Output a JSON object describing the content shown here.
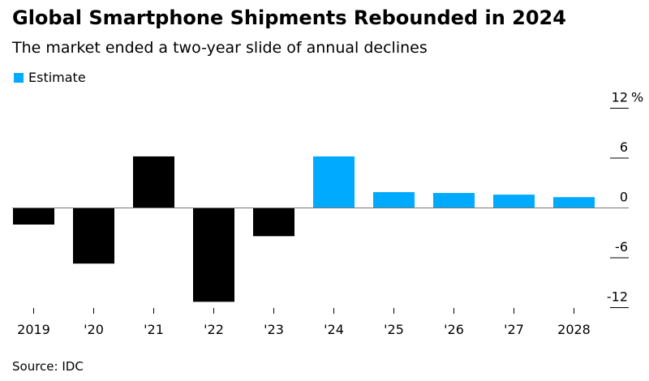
{
  "chart_data": {
    "type": "bar",
    "title": "Global Smartphone Shipments Rebounded in 2024",
    "subtitle": "The market ended a two-year slide of annual declines",
    "categories": [
      "2019",
      "'20",
      "'21",
      "'22",
      "'23",
      "'24",
      "'25",
      "'26",
      "'27",
      "2028"
    ],
    "values": [
      -2.0,
      -6.7,
      6.2,
      -11.3,
      -3.4,
      6.2,
      1.9,
      1.8,
      1.6,
      1.3
    ],
    "estimate": [
      false,
      false,
      false,
      false,
      false,
      true,
      true,
      true,
      true,
      true
    ],
    "legend": [
      {
        "label": "Estimate",
        "color": "#00aaff"
      }
    ],
    "legend_placement": "top-left",
    "colors": {
      "actual": "#000000",
      "estimate": "#00aaff"
    },
    "ylim": [
      -12,
      12
    ],
    "yticks": [
      12,
      6,
      0,
      -6,
      -12
    ],
    "ytick_labels": [
      "12",
      "6",
      "0",
      "-6",
      "-12"
    ],
    "yunit": "%",
    "xlabel": "",
    "ylabel": "",
    "source": "Source: IDC"
  }
}
